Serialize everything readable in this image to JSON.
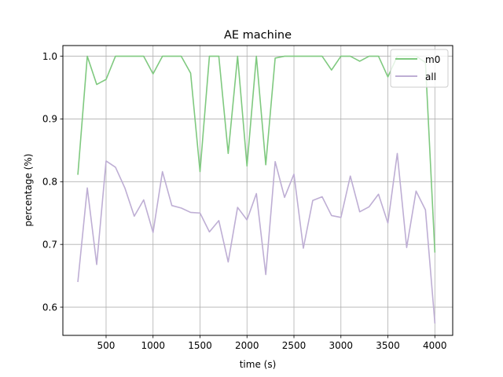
{
  "chart_data": {
    "type": "line",
    "title": "AE machine",
    "xlabel": "time (s)",
    "ylabel": "percentage (%)",
    "xlim": [
      40,
      4190
    ],
    "ylim": [
      0.555,
      1.017
    ],
    "xticks": [
      500,
      1000,
      1500,
      2000,
      2500,
      3000,
      3500,
      4000
    ],
    "xtick_labels": [
      "500",
      "1000",
      "1500",
      "2000",
      "2500",
      "3000",
      "3500",
      "4000"
    ],
    "yticks": [
      0.6,
      0.7,
      0.8,
      0.9,
      1.0
    ],
    "ytick_labels": [
      "0.6",
      "0.7",
      "0.8",
      "0.9",
      "1.0"
    ],
    "grid": true,
    "legend_position": "top-right",
    "x": [
      200,
      300,
      400,
      500,
      600,
      700,
      800,
      900,
      1000,
      1100,
      1200,
      1300,
      1400,
      1500,
      1600,
      1700,
      1800,
      1900,
      2000,
      2100,
      2200,
      2300,
      2400,
      2500,
      2600,
      2700,
      2800,
      2900,
      3000,
      3100,
      3200,
      3300,
      3400,
      3500,
      3600,
      3700,
      3800,
      3900,
      4000
    ],
    "series": [
      {
        "name": "m0",
        "color": "#7fc97f",
        "values": [
          0.812,
          1.0,
          0.955,
          0.963,
          1.0,
          1.0,
          1.0,
          1.0,
          0.972,
          1.0,
          1.0,
          1.0,
          0.973,
          0.816,
          1.0,
          1.0,
          0.845,
          1.0,
          0.825,
          1.0,
          0.827,
          0.997,
          1.0,
          1.0,
          1.0,
          1.0,
          1.0,
          0.978,
          1.0,
          1.0,
          0.992,
          1.0,
          1.0,
          0.967,
          1.0,
          1.0,
          1.0,
          0.99,
          0.688
        ]
      },
      {
        "name": "all",
        "color": "#beaed4",
        "values": [
          0.641,
          0.79,
          0.668,
          0.833,
          0.823,
          0.79,
          0.745,
          0.771,
          0.719,
          0.816,
          0.762,
          0.758,
          0.751,
          0.75,
          0.72,
          0.738,
          0.672,
          0.759,
          0.739,
          0.781,
          0.652,
          0.832,
          0.775,
          0.812,
          0.694,
          0.77,
          0.776,
          0.746,
          0.743,
          0.809,
          0.752,
          0.76,
          0.78,
          0.734,
          0.845,
          0.695,
          0.785,
          0.755,
          0.575
        ]
      }
    ]
  }
}
